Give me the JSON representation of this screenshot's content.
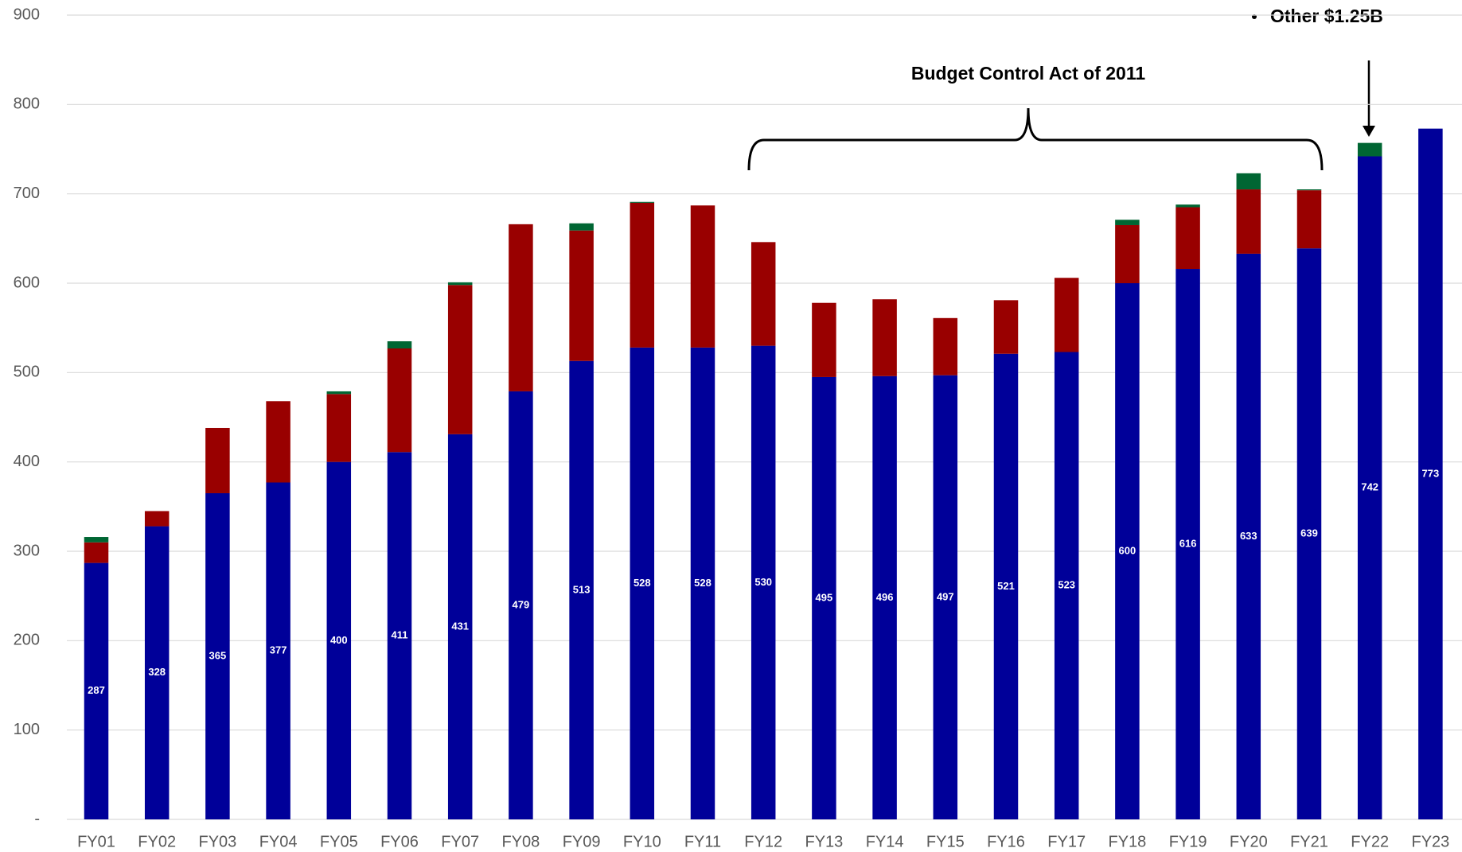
{
  "chart_data": {
    "type": "bar",
    "stacked": true,
    "categories": [
      "FY01",
      "FY02",
      "FY03",
      "FY04",
      "FY05",
      "FY06",
      "FY07",
      "FY08",
      "FY09",
      "FY10",
      "FY11",
      "FY12",
      "FY13",
      "FY14",
      "FY15",
      "FY16",
      "FY17",
      "FY18",
      "FY19",
      "FY20",
      "FY21",
      "FY22",
      "FY23"
    ],
    "series": [
      {
        "color": "#000099",
        "values": [
          287,
          328,
          365,
          377,
          400,
          411,
          431,
          479,
          513,
          528,
          528,
          530,
          495,
          496,
          497,
          521,
          523,
          600,
          616,
          633,
          639,
          742,
          773
        ]
      },
      {
        "color": "#990000",
        "values": [
          23,
          17,
          73,
          91,
          76,
          116,
          167,
          187,
          146,
          162,
          159,
          116,
          83,
          86,
          64,
          60,
          83,
          65,
          69,
          72,
          65,
          0,
          0
        ]
      },
      {
        "color": "#006633",
        "values": [
          6,
          0,
          0,
          0,
          3,
          8,
          3,
          0,
          8,
          1,
          0,
          0,
          0,
          0,
          0,
          0,
          0,
          6,
          3,
          18,
          1,
          15,
          0
        ]
      }
    ],
    "ylim": [
      0,
      900
    ],
    "yticks": [
      {
        "value": 0,
        "label": "-"
      },
      100,
      200,
      300,
      400,
      500,
      600,
      700,
      800,
      900
    ],
    "grid": true,
    "annotations": [
      "Budget Control Act of 2011",
      "Other $1.25B"
    ]
  }
}
